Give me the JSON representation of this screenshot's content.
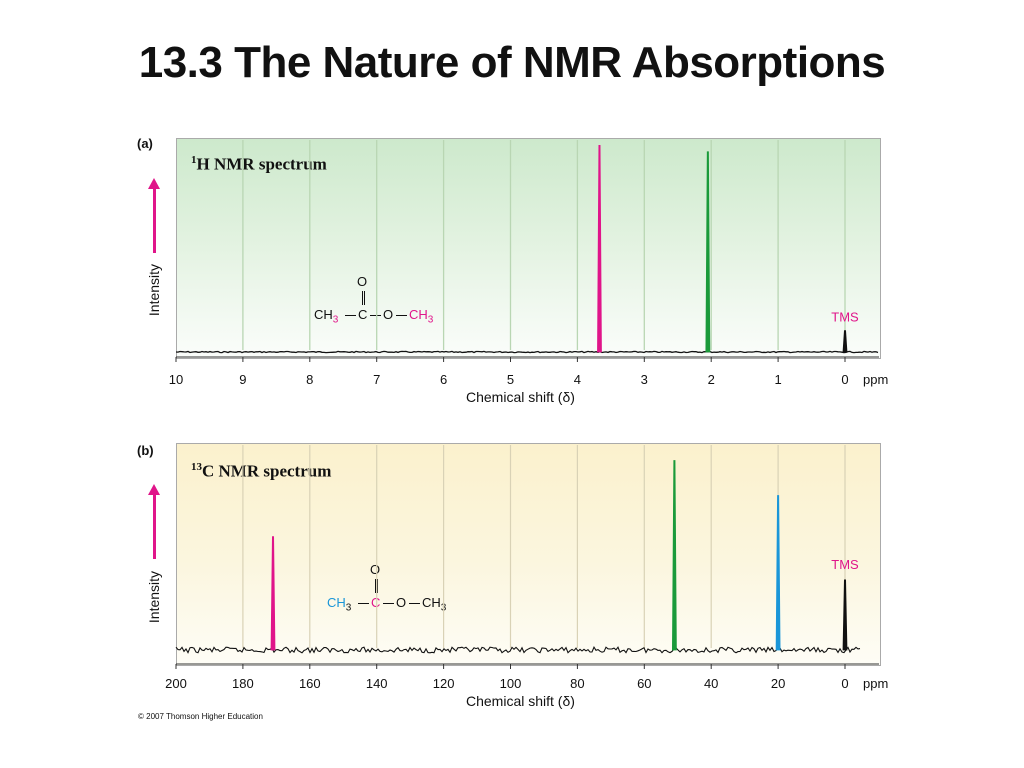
{
  "slide": {
    "title": "13.3 The Nature of NMR Absorptions",
    "credit": "© 2007 Thomson Higher Education"
  },
  "chart_data": [
    {
      "type": "line",
      "panel_label": "(a)",
      "title_sup": "1",
      "title_text": "H NMR spectrum",
      "ylabel": "Intensity",
      "xlabel": "Chemical shift (δ)",
      "unit_label": "ppm",
      "xlim": [
        10,
        0
      ],
      "ticks": [
        10,
        9,
        8,
        7,
        6,
        5,
        4,
        3,
        2,
        1,
        0
      ],
      "grid": true,
      "peaks": [
        {
          "x": 3.67,
          "height": 0.97,
          "color": "#e0158a"
        },
        {
          "x": 2.05,
          "height": 0.94,
          "color": "#1a9a3a"
        },
        {
          "x": 0.0,
          "height": 0.1,
          "color": "#111111",
          "label": "TMS"
        }
      ],
      "baseline_color": "#111111",
      "molecule": {
        "o": "O",
        "ch3_left": "CH",
        "sub_left": "3",
        "c": "C",
        "o_ester": "O",
        "ch3_right": "CH",
        "sub_right": "3"
      },
      "molecule_colors": {
        "left": "#111111",
        "right": "#e0158a",
        "center": "#111111"
      }
    },
    {
      "type": "line",
      "panel_label": "(b)",
      "title_sup": "13",
      "title_text": "C NMR spectrum",
      "ylabel": "Intensity",
      "xlabel": "Chemical shift (δ)",
      "unit_label": "ppm",
      "xlim": [
        200,
        0
      ],
      "ticks": [
        200,
        180,
        160,
        140,
        120,
        100,
        80,
        60,
        40,
        20,
        0
      ],
      "grid": true,
      "peaks": [
        {
          "x": 171,
          "height": 0.55,
          "color": "#e0158a"
        },
        {
          "x": 51,
          "height": 0.92,
          "color": "#1a9a3a"
        },
        {
          "x": 20,
          "height": 0.75,
          "color": "#1a96d8"
        },
        {
          "x": 0.0,
          "height": 0.34,
          "color": "#111111",
          "label": "TMS"
        }
      ],
      "baseline_color": "#111111",
      "molecule": {
        "o": "O",
        "ch3_left": "CH",
        "sub_left": "3",
        "c": "C",
        "o_ester": "O",
        "ch3_right": "CH",
        "sub_right": "3"
      },
      "molecule_colors": {
        "left": "#1a96d8",
        "right": "#111111",
        "center": "#e0158a"
      }
    }
  ]
}
